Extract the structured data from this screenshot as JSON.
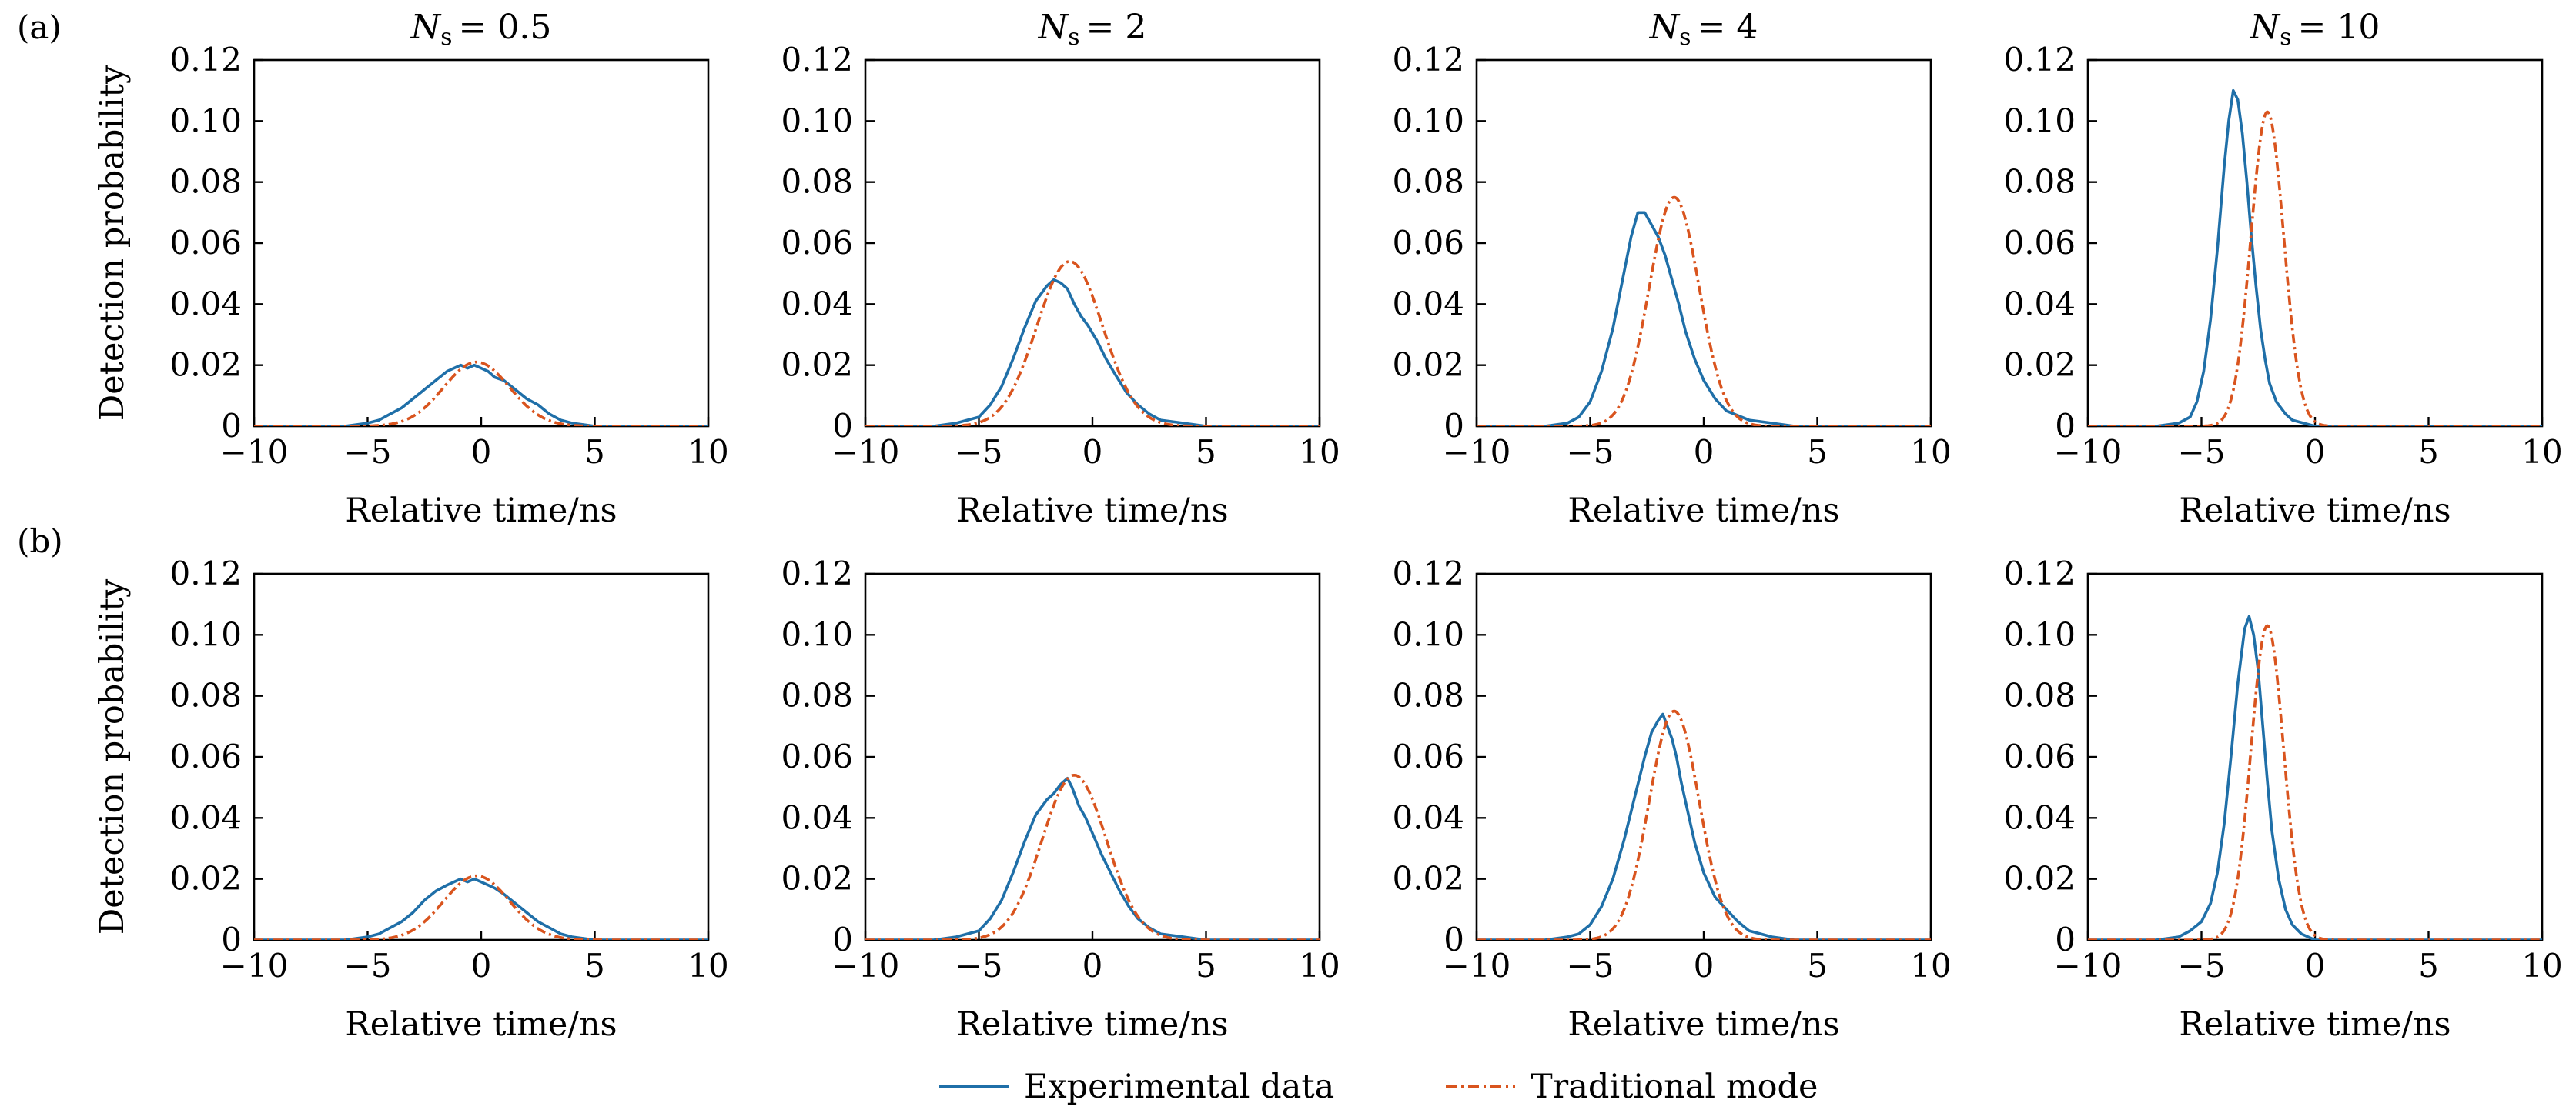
{
  "figure": {
    "row_labels": [
      "(a)",
      "(b)"
    ],
    "legend": [
      {
        "label": "Experimental data",
        "color": "#1f6fa8",
        "style": "solid"
      },
      {
        "label": "Traditional mode",
        "color": "#d9541e",
        "style": "dashdot"
      }
    ]
  },
  "chart_data": [
    {
      "type": "line",
      "row": "(a)",
      "title_var": "N",
      "title_sub": "s",
      "title_value": "= 0.5",
      "xlabel": "Relative time/ns",
      "ylabel": "Detection probability",
      "xlim": [
        -10,
        10
      ],
      "ylim": [
        0,
        0.12
      ],
      "xticks": [
        -10,
        -5,
        0,
        5,
        10
      ],
      "yticks": [
        0,
        0.02,
        0.04,
        0.06,
        0.08,
        0.1,
        0.12
      ],
      "xtick_labels": [
        "−10",
        "−5",
        "0",
        "5",
        "10"
      ],
      "ytick_labels": [
        "0",
        "0.02",
        "0.04",
        "0.06",
        "0.08",
        "0.10",
        "0.12"
      ],
      "series": [
        {
          "name": "Experimental data",
          "x": [
            -6,
            -5,
            -4.5,
            -4,
            -3.5,
            -3,
            -2.5,
            -2,
            -1.5,
            -1.2,
            -0.9,
            -0.6,
            -0.3,
            0,
            0.3,
            0.6,
            1,
            1.5,
            2,
            2.5,
            3,
            3.5,
            4,
            5,
            6
          ],
          "y": [
            0,
            0.001,
            0.002,
            0.004,
            0.006,
            0.009,
            0.012,
            0.015,
            0.018,
            0.019,
            0.02,
            0.019,
            0.02,
            0.019,
            0.018,
            0.016,
            0.015,
            0.012,
            0.009,
            0.007,
            0.004,
            0.002,
            0.001,
            0,
            0
          ]
        },
        {
          "name": "Traditional mode",
          "gaussian": {
            "mu": -0.2,
            "sigma": 1.45,
            "peak": 0.021
          }
        }
      ]
    },
    {
      "type": "line",
      "row": "(a)",
      "title_var": "N",
      "title_sub": "s",
      "title_value": "= 2",
      "xlabel": "Relative time/ns",
      "ylabel": "",
      "xlim": [
        -10,
        10
      ],
      "ylim": [
        0,
        0.12
      ],
      "xticks": [
        -10,
        -5,
        0,
        5,
        10
      ],
      "yticks": [
        0,
        0.02,
        0.04,
        0.06,
        0.08,
        0.1,
        0.12
      ],
      "xtick_labels": [
        "−10",
        "−5",
        "0",
        "5",
        "10"
      ],
      "ytick_labels": [
        "0",
        "0.02",
        "0.04",
        "0.06",
        "0.08",
        "0.10",
        "0.12"
      ],
      "series": [
        {
          "name": "Experimental data",
          "x": [
            -7,
            -6,
            -5,
            -4.5,
            -4,
            -3.5,
            -3,
            -2.5,
            -2,
            -1.7,
            -1.4,
            -1.1,
            -0.8,
            -0.5,
            -0.2,
            0.2,
            0.6,
            1,
            1.5,
            2,
            2.5,
            3,
            4,
            5,
            6
          ],
          "y": [
            0,
            0.001,
            0.003,
            0.007,
            0.013,
            0.022,
            0.032,
            0.041,
            0.046,
            0.048,
            0.047,
            0.045,
            0.04,
            0.036,
            0.033,
            0.028,
            0.022,
            0.017,
            0.011,
            0.007,
            0.004,
            0.002,
            0.001,
            0,
            0
          ]
        },
        {
          "name": "Traditional mode",
          "gaussian": {
            "mu": -1.0,
            "sigma": 1.45,
            "peak": 0.054
          }
        }
      ]
    },
    {
      "type": "line",
      "row": "(a)",
      "title_var": "N",
      "title_sub": "s",
      "title_value": "= 4",
      "xlabel": "Relative time/ns",
      "ylabel": "",
      "xlim": [
        -10,
        10
      ],
      "ylim": [
        0,
        0.12
      ],
      "xticks": [
        -10,
        -5,
        0,
        5,
        10
      ],
      "yticks": [
        0,
        0.02,
        0.04,
        0.06,
        0.08,
        0.1,
        0.12
      ],
      "xtick_labels": [
        "−10",
        "−5",
        "0",
        "5",
        "10"
      ],
      "ytick_labels": [
        "0",
        "0.02",
        "0.04",
        "0.06",
        "0.08",
        "0.10",
        "0.12"
      ],
      "series": [
        {
          "name": "Experimental data",
          "x": [
            -7,
            -6,
            -5.5,
            -5,
            -4.5,
            -4,
            -3.6,
            -3.2,
            -2.9,
            -2.6,
            -2.3,
            -2.0,
            -1.7,
            -1.4,
            -1.1,
            -0.8,
            -0.4,
            0,
            0.5,
            1,
            2,
            3,
            4,
            5
          ],
          "y": [
            0,
            0.001,
            0.003,
            0.008,
            0.018,
            0.032,
            0.047,
            0.062,
            0.07,
            0.07,
            0.066,
            0.062,
            0.056,
            0.048,
            0.04,
            0.031,
            0.022,
            0.015,
            0.009,
            0.005,
            0.002,
            0.001,
            0,
            0
          ]
        },
        {
          "name": "Traditional mode",
          "gaussian": {
            "mu": -1.3,
            "sigma": 1.1,
            "peak": 0.075
          }
        }
      ]
    },
    {
      "type": "line",
      "row": "(a)",
      "title_var": "N",
      "title_sub": "s",
      "title_value": "= 10",
      "xlabel": "Relative time/ns",
      "ylabel": "",
      "xlim": [
        -10,
        10
      ],
      "ylim": [
        0,
        0.12
      ],
      "xticks": [
        -10,
        -5,
        0,
        5,
        10
      ],
      "yticks": [
        0,
        0.02,
        0.04,
        0.06,
        0.08,
        0.1,
        0.12
      ],
      "xtick_labels": [
        "−10",
        "−5",
        "0",
        "5",
        "10"
      ],
      "ytick_labels": [
        "0",
        "0.02",
        "0.04",
        "0.06",
        "0.08",
        "0.10",
        "0.12"
      ],
      "series": [
        {
          "name": "Experimental data",
          "x": [
            -7,
            -6,
            -5.5,
            -5.2,
            -4.9,
            -4.6,
            -4.3,
            -4.0,
            -3.8,
            -3.6,
            -3.4,
            -3.2,
            -3.0,
            -2.8,
            -2.6,
            -2.4,
            -2.2,
            -2.0,
            -1.7,
            -1.3,
            -1,
            0,
            1
          ],
          "y": [
            0,
            0.001,
            0.003,
            0.008,
            0.018,
            0.035,
            0.058,
            0.085,
            0.1,
            0.11,
            0.107,
            0.096,
            0.08,
            0.062,
            0.046,
            0.032,
            0.022,
            0.014,
            0.008,
            0.004,
            0.002,
            0,
            0
          ]
        },
        {
          "name": "Traditional mode",
          "gaussian": {
            "mu": -2.1,
            "sigma": 0.72,
            "peak": 0.103
          }
        }
      ]
    },
    {
      "type": "line",
      "row": "(b)",
      "title_var": "",
      "title_sub": "",
      "title_value": "",
      "xlabel": "Relative time/ns",
      "ylabel": "Detection probability",
      "xlim": [
        -10,
        10
      ],
      "ylim": [
        0,
        0.12
      ],
      "xticks": [
        -10,
        -5,
        0,
        5,
        10
      ],
      "yticks": [
        0,
        0.02,
        0.04,
        0.06,
        0.08,
        0.1,
        0.12
      ],
      "xtick_labels": [
        "−10",
        "−5",
        "0",
        "5",
        "10"
      ],
      "ytick_labels": [
        "0",
        "0.02",
        "0.04",
        "0.06",
        "0.08",
        "0.10",
        "0.12"
      ],
      "series": [
        {
          "name": "Experimental data",
          "x": [
            -6,
            -5,
            -4.5,
            -4,
            -3.5,
            -3,
            -2.5,
            -2,
            -1.5,
            -1.2,
            -0.9,
            -0.6,
            -0.3,
            0,
            0.3,
            0.6,
            1,
            1.5,
            2,
            2.5,
            3,
            3.5,
            4,
            5,
            6
          ],
          "y": [
            0,
            0.001,
            0.002,
            0.004,
            0.006,
            0.009,
            0.013,
            0.016,
            0.018,
            0.019,
            0.02,
            0.019,
            0.02,
            0.019,
            0.018,
            0.017,
            0.015,
            0.012,
            0.009,
            0.006,
            0.004,
            0.002,
            0.001,
            0,
            0
          ]
        },
        {
          "name": "Traditional mode",
          "gaussian": {
            "mu": -0.2,
            "sigma": 1.45,
            "peak": 0.021
          }
        }
      ]
    },
    {
      "type": "line",
      "row": "(b)",
      "title_var": "",
      "title_sub": "",
      "title_value": "",
      "xlabel": "Relative time/ns",
      "ylabel": "",
      "xlim": [
        -10,
        10
      ],
      "ylim": [
        0,
        0.12
      ],
      "xticks": [
        -10,
        -5,
        0,
        5,
        10
      ],
      "yticks": [
        0,
        0.02,
        0.04,
        0.06,
        0.08,
        0.1,
        0.12
      ],
      "xtick_labels": [
        "−10",
        "−5",
        "0",
        "5",
        "10"
      ],
      "ytick_labels": [
        "0",
        "0.02",
        "0.04",
        "0.06",
        "0.08",
        "0.10",
        "0.12"
      ],
      "series": [
        {
          "name": "Experimental data",
          "x": [
            -7,
            -6,
            -5,
            -4.5,
            -4,
            -3.5,
            -3,
            -2.5,
            -2,
            -1.7,
            -1.4,
            -1.1,
            -0.9,
            -0.6,
            -0.3,
            0,
            0.4,
            0.8,
            1.2,
            1.6,
            2,
            2.5,
            3,
            4,
            5
          ],
          "y": [
            0,
            0.001,
            0.003,
            0.007,
            0.013,
            0.022,
            0.032,
            0.041,
            0.046,
            0.048,
            0.051,
            0.053,
            0.05,
            0.044,
            0.04,
            0.035,
            0.028,
            0.022,
            0.016,
            0.011,
            0.007,
            0.004,
            0.002,
            0.001,
            0
          ]
        },
        {
          "name": "Traditional mode",
          "gaussian": {
            "mu": -0.8,
            "sigma": 1.42,
            "peak": 0.054
          }
        }
      ]
    },
    {
      "type": "line",
      "row": "(b)",
      "title_var": "",
      "title_sub": "",
      "title_value": "",
      "xlabel": "Relative time/ns",
      "ylabel": "",
      "xlim": [
        -10,
        10
      ],
      "ylim": [
        0,
        0.12
      ],
      "xticks": [
        -10,
        -5,
        0,
        5,
        10
      ],
      "yticks": [
        0,
        0.02,
        0.04,
        0.06,
        0.08,
        0.1,
        0.12
      ],
      "xtick_labels": [
        "−10",
        "−5",
        "0",
        "5",
        "10"
      ],
      "ytick_labels": [
        "0",
        "0.02",
        "0.04",
        "0.06",
        "0.08",
        "0.10",
        "0.12"
      ],
      "series": [
        {
          "name": "Experimental data",
          "x": [
            -7,
            -6,
            -5.5,
            -5,
            -4.5,
            -4,
            -3.5,
            -3.0,
            -2.6,
            -2.3,
            -2.0,
            -1.8,
            -1.6,
            -1.4,
            -1.2,
            -1.0,
            -0.7,
            -0.4,
            0,
            0.5,
            1,
            1.5,
            2,
            3,
            4,
            5
          ],
          "y": [
            0,
            0.001,
            0.002,
            0.005,
            0.011,
            0.02,
            0.033,
            0.048,
            0.06,
            0.068,
            0.072,
            0.074,
            0.07,
            0.066,
            0.06,
            0.052,
            0.042,
            0.032,
            0.022,
            0.014,
            0.01,
            0.006,
            0.003,
            0.001,
            0,
            0
          ]
        },
        {
          "name": "Traditional mode",
          "gaussian": {
            "mu": -1.3,
            "sigma": 1.1,
            "peak": 0.075
          }
        }
      ]
    },
    {
      "type": "line",
      "row": "(b)",
      "title_var": "",
      "title_sub": "",
      "title_value": "",
      "xlabel": "Relative time/ns",
      "ylabel": "",
      "xlim": [
        -10,
        10
      ],
      "ylim": [
        0,
        0.12
      ],
      "xticks": [
        -10,
        -5,
        0,
        5,
        10
      ],
      "yticks": [
        0,
        0.02,
        0.04,
        0.06,
        0.08,
        0.1,
        0.12
      ],
      "xtick_labels": [
        "−10",
        "−5",
        "0",
        "5",
        "10"
      ],
      "ytick_labels": [
        "0",
        "0.02",
        "0.04",
        "0.06",
        "0.08",
        "0.10",
        "0.12"
      ],
      "series": [
        {
          "name": "Experimental data",
          "x": [
            -7,
            -6,
            -5.5,
            -5,
            -4.6,
            -4.3,
            -4.0,
            -3.7,
            -3.4,
            -3.1,
            -2.9,
            -2.7,
            -2.5,
            -2.3,
            -2.1,
            -1.9,
            -1.6,
            -1.3,
            -1.0,
            -0.6,
            0,
            1
          ],
          "y": [
            0,
            0.001,
            0.003,
            0.006,
            0.012,
            0.022,
            0.038,
            0.06,
            0.084,
            0.102,
            0.106,
            0.1,
            0.088,
            0.07,
            0.052,
            0.036,
            0.02,
            0.01,
            0.005,
            0.002,
            0,
            0
          ]
        },
        {
          "name": "Traditional mode",
          "gaussian": {
            "mu": -2.1,
            "sigma": 0.72,
            "peak": 0.103
          }
        }
      ]
    }
  ]
}
